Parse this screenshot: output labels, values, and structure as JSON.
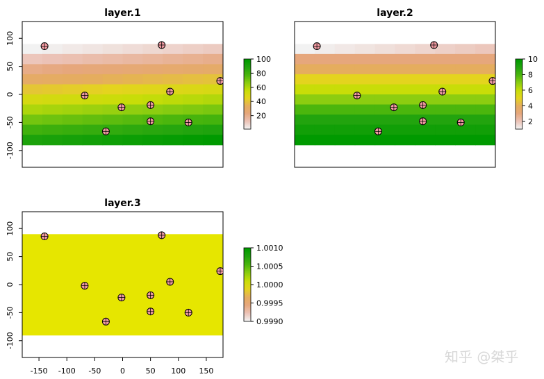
{
  "chart_data": [
    {
      "type": "heatmap",
      "title": "layer.1",
      "xlim": [
        -180,
        180
      ],
      "ylim": [
        -130,
        130
      ],
      "xticks": [
        -150,
        -100,
        -50,
        0,
        50,
        100,
        150
      ],
      "yticks": [
        -100,
        -50,
        0,
        50,
        100
      ],
      "show_x_axis": false,
      "x_edges": [
        -180,
        -144,
        -108,
        -72,
        -36,
        0,
        36,
        72,
        108,
        144,
        180
      ],
      "y_edges": [
        90,
        72,
        54,
        36,
        18,
        0,
        -18,
        -36,
        -54,
        -72,
        -90
      ],
      "grid_values": [
        [
          1,
          2,
          3,
          4,
          5,
          6,
          7,
          8,
          9,
          10
        ],
        [
          11,
          12,
          13,
          14,
          15,
          16,
          17,
          18,
          19,
          20
        ],
        [
          21,
          22,
          23,
          24,
          25,
          26,
          27,
          28,
          29,
          30
        ],
        [
          31,
          32,
          33,
          34,
          35,
          36,
          37,
          38,
          39,
          40
        ],
        [
          41,
          42,
          43,
          44,
          45,
          46,
          47,
          48,
          49,
          50
        ],
        [
          51,
          52,
          53,
          54,
          55,
          56,
          57,
          58,
          59,
          60
        ],
        [
          61,
          62,
          63,
          64,
          65,
          66,
          67,
          68,
          69,
          70
        ],
        [
          71,
          72,
          73,
          74,
          75,
          76,
          77,
          78,
          79,
          80
        ],
        [
          81,
          82,
          83,
          84,
          85,
          86,
          87,
          88,
          89,
          90
        ],
        [
          91,
          92,
          93,
          94,
          95,
          96,
          97,
          98,
          99,
          100
        ]
      ],
      "zlim": [
        1,
        100
      ],
      "legend_ticks": [
        "20",
        "40",
        "60",
        "80",
        "100"
      ],
      "legend_tick_values": [
        20,
        40,
        60,
        80,
        100
      ],
      "points": [
        {
          "x": -140,
          "y": 86
        },
        {
          "x": 70,
          "y": 88
        },
        {
          "x": -68,
          "y": -2
        },
        {
          "x": 85,
          "y": 5
        },
        {
          "x": 175,
          "y": 24
        },
        {
          "x": -2,
          "y": -23
        },
        {
          "x": 50,
          "y": -19
        },
        {
          "x": -30,
          "y": -66
        },
        {
          "x": 50,
          "y": -48
        },
        {
          "x": 118,
          "y": -50
        }
      ]
    },
    {
      "type": "heatmap",
      "title": "layer.2",
      "xlim": [
        -180,
        180
      ],
      "ylim": [
        -130,
        130
      ],
      "xticks": [
        -150,
        -100,
        -50,
        0,
        50,
        100,
        150
      ],
      "yticks": [
        -100,
        -50,
        0,
        50,
        100
      ],
      "show_x_axis": false,
      "show_y_axis": false,
      "x_edges": [
        -180,
        -144,
        -108,
        -72,
        -36,
        0,
        36,
        72,
        108,
        144,
        180
      ],
      "y_edges": [
        90,
        72,
        54,
        36,
        18,
        0,
        -18,
        -36,
        -54,
        -72,
        -90
      ],
      "grid_values": [
        [
          1,
          1.1,
          1.2,
          1.3,
          1.4,
          1.5,
          1.6,
          1.7,
          1.8,
          1.9
        ],
        [
          3,
          3,
          3,
          3,
          3,
          3,
          3,
          3,
          3,
          3
        ],
        [
          4,
          4,
          4,
          4,
          4,
          4,
          4,
          4,
          4,
          4
        ],
        [
          5,
          5,
          5,
          5,
          5,
          5,
          5,
          5,
          5,
          5
        ],
        [
          6,
          6,
          6,
          6,
          6,
          6,
          6,
          6,
          6,
          6
        ],
        [
          7,
          7,
          7,
          7,
          7,
          7,
          7,
          7,
          7,
          7
        ],
        [
          8,
          8,
          8,
          8,
          8,
          8,
          8,
          8,
          8,
          8
        ],
        [
          9,
          9,
          9,
          9,
          9,
          9,
          9,
          9,
          9,
          9
        ],
        [
          9.5,
          9.5,
          9.5,
          9.5,
          9.5,
          9.5,
          9.5,
          9.5,
          9.5,
          9.5
        ],
        [
          10,
          10,
          10,
          10,
          10,
          10,
          10,
          10,
          10,
          10
        ]
      ],
      "zlim": [
        1,
        10
      ],
      "legend_ticks": [
        "2",
        "4",
        "6",
        "8",
        "10"
      ],
      "legend_tick_values": [
        2,
        4,
        6,
        8,
        10
      ],
      "points": [
        {
          "x": -140,
          "y": 86
        },
        {
          "x": 70,
          "y": 88
        },
        {
          "x": -68,
          "y": -2
        },
        {
          "x": 85,
          "y": 5
        },
        {
          "x": 175,
          "y": 24
        },
        {
          "x": -2,
          "y": -23
        },
        {
          "x": 50,
          "y": -19
        },
        {
          "x": -30,
          "y": -66
        },
        {
          "x": 50,
          "y": -48
        },
        {
          "x": 118,
          "y": -50
        }
      ]
    },
    {
      "type": "heatmap",
      "title": "layer.3",
      "xlim": [
        -180,
        180
      ],
      "ylim": [
        -130,
        130
      ],
      "xticks": [
        -150,
        -100,
        -50,
        0,
        50,
        100,
        150
      ],
      "yticks": [
        -100,
        -50,
        0,
        50,
        100
      ],
      "show_x_axis": true,
      "x_edges": [
        -180,
        180
      ],
      "y_edges": [
        90,
        -90
      ],
      "grid_values": [
        [
          1.0
        ]
      ],
      "zlim": [
        0.999,
        1.001
      ],
      "legend_ticks": [
        "0.9990",
        "0.9995",
        "1.0000",
        "1.0005",
        "1.0010"
      ],
      "legend_tick_values": [
        0.999,
        0.9995,
        1.0,
        1.0005,
        1.001
      ],
      "points": [
        {
          "x": -140,
          "y": 86
        },
        {
          "x": 70,
          "y": 88
        },
        {
          "x": -68,
          "y": -2
        },
        {
          "x": 85,
          "y": 5
        },
        {
          "x": 175,
          "y": 24
        },
        {
          "x": -2,
          "y": -23
        },
        {
          "x": 50,
          "y": -19
        },
        {
          "x": -30,
          "y": -66
        },
        {
          "x": 50,
          "y": -48
        },
        {
          "x": 118,
          "y": -50
        }
      ]
    }
  ],
  "colors": {
    "palette": [
      "#f2f2f2",
      "#ebc2b6",
      "#e6a77c",
      "#e5ad5e",
      "#e4d41e",
      "#c8dd08",
      "#8ccd10",
      "#4bb60d",
      "#22a40e",
      "#009a00"
    ],
    "layer3_fill": "#e6e600",
    "point_fill": "#f29ba2",
    "point_stroke": "#000000",
    "axis": "#000000"
  },
  "watermark": "知乎 @桀乎"
}
